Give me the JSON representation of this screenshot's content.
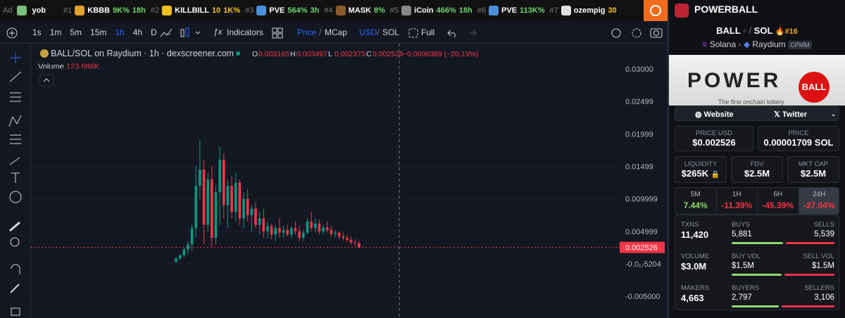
{
  "ticker": {
    "ad": "Ad",
    "ad_name": "yob",
    "items": [
      {
        "rank": "#1",
        "name": "KBBB",
        "stats": [
          "9K%",
          "18h"
        ]
      },
      {
        "rank": "#2",
        "name": "KILLBILL",
        "stats": [
          "10",
          "1K%"
        ]
      },
      {
        "rank": "#3",
        "name": "PVE",
        "stats": [
          "564%",
          "3h"
        ]
      },
      {
        "rank": "#4",
        "name": "MASK",
        "stats": [
          "8%"
        ]
      },
      {
        "rank": "#5",
        "name": "iCoin",
        "stats": [
          "466%",
          "18h"
        ]
      },
      {
        "rank": "#6",
        "name": "PVE",
        "stats": [
          "113K%"
        ]
      },
      {
        "rank": "#7",
        "name": "ozempig",
        "stats": [
          "30"
        ]
      }
    ]
  },
  "toolbar": {
    "intervals": [
      "1s",
      "1m",
      "5m",
      "15m",
      "1h",
      "4h",
      "D"
    ],
    "indicators": "Indicators",
    "price": "Price",
    "mcap": "MCap",
    "usd": "USD",
    "sol": "SOL",
    "full": "Full"
  },
  "chart_data": {
    "type": "candlestick",
    "title": "BALL/SOL on Raydium · 1h · dexscreener.com",
    "ohlc_letters": [
      "O",
      "H",
      "L",
      "C"
    ],
    "change_label": "−0.0006389 (−20.19%)",
    "volume_title": "Volume",
    "volume": {
      "value": 123686,
      "label": "123.686K"
    },
    "up_color": "#089981",
    "down_color": "#f23645",
    "grid": true,
    "ylim": [
      -0.00833,
      0.03355
    ],
    "yticks": [
      {
        "value": 0.03,
        "label": "0.03000"
      },
      0.02499,
      0.01999,
      0.01499,
      0.009999,
      0.004999,
      {
        "value": -5.204e-21,
        "label": "-0.0₁₇5204"
      },
      {
        "value": -0.005,
        "label": "-0.005000"
      }
    ],
    "open": [
      0.0003,
      0.0008,
      0.0013,
      0.0022,
      0.003,
      0.0055,
      0.012,
      0.0145,
      0.006,
      0.013,
      0.004,
      0.011,
      0.016,
      0.009,
      0.012,
      0.008,
      0.0125,
      0.007,
      0.01,
      0.0075,
      0.0085,
      0.006,
      0.007,
      0.005,
      0.0058,
      0.0045,
      0.0055,
      0.0048,
      0.0052,
      0.0045,
      0.0055,
      0.005,
      0.004,
      0.0048,
      0.0065,
      0.0055,
      0.0062,
      0.005,
      0.0056,
      0.0052,
      0.0046,
      0.0048,
      0.0042,
      0.004,
      0.0037,
      0.0033,
      0.003165
    ],
    "high": [
      0.001,
      0.0015,
      0.0025,
      0.0035,
      0.006,
      0.015,
      0.0191,
      0.016,
      0.014,
      0.015,
      0.012,
      0.018,
      0.017,
      0.013,
      0.0135,
      0.014,
      0.013,
      0.011,
      0.0115,
      0.009,
      0.0095,
      0.008,
      0.0085,
      0.0065,
      0.0062,
      0.006,
      0.007,
      0.0058,
      0.006,
      0.0058,
      0.0065,
      0.0058,
      0.0052,
      0.007,
      0.008,
      0.007,
      0.0068,
      0.006,
      0.0065,
      0.0058,
      0.0052,
      0.005,
      0.0048,
      0.0045,
      0.0042,
      0.0038,
      0.003497
    ],
    "low": [
      0.0002,
      0.0006,
      0.001,
      0.0015,
      0.002,
      0.004,
      0.01,
      0.003,
      0.005,
      0.0025,
      0.003,
      0.006,
      0.007,
      0.0055,
      0.007,
      0.0065,
      0.006,
      0.0055,
      0.0065,
      0.005,
      0.0055,
      0.0045,
      0.004,
      0.004,
      0.0038,
      0.0035,
      0.004,
      0.004,
      0.0042,
      0.004,
      0.0045,
      0.0035,
      0.0035,
      0.0045,
      0.005,
      0.0048,
      0.0045,
      0.0045,
      0.0048,
      0.0042,
      0.004,
      0.0038,
      0.0036,
      0.0034,
      0.003,
      0.0028,
      0.002375
    ],
    "close": [
      0.0008,
      0.0013,
      0.0022,
      0.003,
      0.0055,
      0.012,
      0.0145,
      0.006,
      0.013,
      0.004,
      0.011,
      0.016,
      0.009,
      0.012,
      0.008,
      0.0125,
      0.007,
      0.01,
      0.0075,
      0.0085,
      0.006,
      0.007,
      0.005,
      0.0058,
      0.0045,
      0.0055,
      0.0048,
      0.0052,
      0.0045,
      0.0055,
      0.005,
      0.004,
      0.0048,
      0.0065,
      0.0055,
      0.0062,
      0.005,
      0.0056,
      0.0052,
      0.0046,
      0.0048,
      0.0042,
      0.004,
      0.0037,
      0.0033,
      0.003165,
      0.002526
    ]
  },
  "panel": {
    "name": "POWERBALL",
    "base": "BALL",
    "quote": "SOL",
    "rank": "#16",
    "chain": "Solana",
    "dex": "Raydium",
    "pool": "CPMM",
    "banner": {
      "power": "POWER",
      "ball": "BALL",
      "caption": "The first onchain lottery"
    },
    "website": "Website",
    "twitter": "Twitter",
    "price_usd": {
      "label": "PRICE USD",
      "value": "$0.002526"
    },
    "price": {
      "label": "PRICE",
      "value": "0.00001709 SOL"
    },
    "liquidity": {
      "label": "LIQUIDITY",
      "value": "$265K"
    },
    "fdv": {
      "label": "FDV",
      "value": "$2.5M"
    },
    "mcap": {
      "label": "MKT CAP",
      "value": "$2.5M"
    },
    "timeframes": [
      {
        "label": "5M",
        "change": "7.44%"
      },
      {
        "label": "1H",
        "change": "-11.39%"
      },
      {
        "label": "6H",
        "change": "-45.39%"
      },
      {
        "label": "24H",
        "change": "-27.04%"
      }
    ],
    "rows": [
      {
        "total_label": "TXNS",
        "total": "11,420",
        "a_label": "BUYS",
        "a": {
          "value": 5881,
          "label": "5,881"
        },
        "b_label": "SELLS",
        "b": {
          "value": 5539,
          "label": "5,539"
        }
      },
      {
        "total_label": "VOLUME",
        "total": "$3.0M",
        "a_label": "BUY VOL",
        "a": {
          "value": 1500000,
          "label": "$1.5M"
        },
        "b_label": "SELL VOL",
        "b": {
          "value": 1500000,
          "label": "$1.5M"
        }
      },
      {
        "total_label": "MAKERS",
        "total": "4,663",
        "a_label": "BUYERS",
        "a": {
          "value": 2797,
          "label": "2,797"
        },
        "b_label": "SELLERS",
        "b": {
          "value": 3106,
          "label": "3,106"
        }
      }
    ]
  }
}
